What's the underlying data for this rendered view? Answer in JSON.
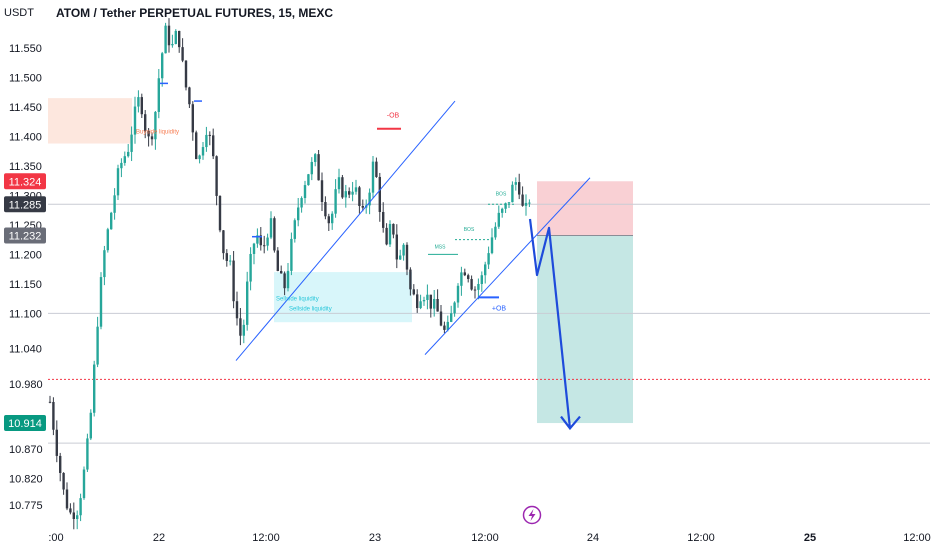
{
  "header": {
    "currency": "USDT",
    "symbol_title": "ATOM / Tether PERPETUAL FUTURES, 15, MEXC"
  },
  "chart_data": {
    "type": "candlestick",
    "y_axis_labels": [
      "11.550",
      "11.500",
      "11.450",
      "11.400",
      "11.350",
      "11.300",
      "11.250",
      "11.200",
      "11.150",
      "11.100",
      "11.040",
      "10.980",
      "10.870",
      "10.820",
      "10.775"
    ],
    "y_axis_values": [
      11.55,
      11.5,
      11.45,
      11.4,
      11.35,
      11.3,
      11.25,
      11.2,
      11.15,
      11.1,
      11.04,
      10.98,
      10.87,
      10.82,
      10.775
    ],
    "ylim": [
      10.745,
      11.6
    ],
    "x_axis_labels": [
      ":00",
      "22",
      "12:00",
      "23",
      "12:00",
      "24",
      "12:00",
      "25",
      "12:00"
    ],
    "x_axis_bold": [
      false,
      false,
      false,
      false,
      false,
      false,
      false,
      true,
      false
    ],
    "price_badges": [
      {
        "label": "11.324",
        "value": 11.324,
        "color": "#f23645"
      },
      {
        "label": "11.285",
        "value": 11.285,
        "color": "#363a45"
      },
      {
        "label": "11.232",
        "value": 11.232,
        "color": "#6a6d78"
      },
      {
        "label": "10.914",
        "value": 10.914,
        "color": "#089981"
      }
    ],
    "horizontal_lines": [
      {
        "value": 11.285,
        "style": "solid",
        "color": "#c9ccd4"
      },
      {
        "value": 11.1,
        "style": "solid",
        "color": "#c9ccd4"
      },
      {
        "value": 10.988,
        "style": "dotted",
        "color": "#f23645"
      },
      {
        "value": 10.88,
        "style": "solid",
        "color": "#c9ccd4"
      }
    ],
    "annotations": [
      {
        "text": "-OB",
        "color": "#f23645"
      },
      {
        "text": "+OB",
        "color": "#2962ff"
      },
      {
        "text": "BOS",
        "color": "#22ab94"
      },
      {
        "text": "BOS",
        "color": "#22ab94"
      },
      {
        "text": "MSS",
        "color": "#22ab94"
      },
      {
        "text": "Sellside liquidity",
        "color": "#26c6da"
      },
      {
        "text": "Sellside liquidity",
        "color": "#26c6da"
      },
      {
        "text": "Buyside liquidity",
        "color": "#f77c51"
      }
    ],
    "short_position": {
      "entry": 11.232,
      "stop": 11.324,
      "target": 10.914,
      "profit_color": "#b2dfdb",
      "loss_color": "#f8c8cc"
    },
    "colors": {
      "up": "#26a69a",
      "down": "#363a45",
      "trendline": "#2962ff",
      "projection": "#1e4bdb"
    },
    "grid": false
  }
}
